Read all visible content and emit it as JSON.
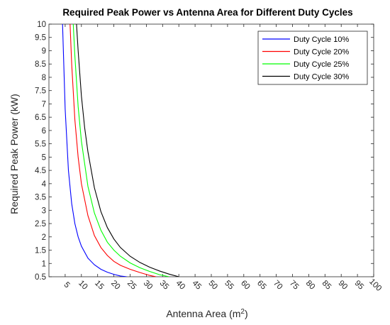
{
  "chart_data": {
    "type": "line",
    "title": "Required Peak Power vs Antenna Area for Different Duty Cycles",
    "xlabel": "Antenna Area (m",
    "xlabel_superscript": "2",
    "xlabel_suffix": ")",
    "ylabel": "Required Peak Power (kW)",
    "xlim": [
      0,
      100
    ],
    "ylim": [
      0.5,
      10
    ],
    "xticks": [
      5,
      10,
      15,
      20,
      25,
      30,
      35,
      40,
      45,
      50,
      55,
      60,
      65,
      70,
      75,
      80,
      85,
      90,
      95,
      100
    ],
    "yticks": [
      0.5,
      1,
      1.5,
      2,
      2.5,
      3,
      3.5,
      4,
      4.5,
      5,
      5.5,
      6,
      6.5,
      7,
      7.5,
      8,
      8.5,
      9,
      9.5,
      10
    ],
    "grid": false,
    "legend_position": "top-right",
    "series": [
      {
        "name": "Duty Cycle 10%",
        "color": "#0000ff",
        "x": [
          4.2,
          5,
          6,
          7,
          8,
          9,
          10,
          12,
          14,
          16,
          18,
          20,
          22,
          24
        ],
        "y": [
          10,
          6.8,
          4.5,
          3.25,
          2.5,
          2.0,
          1.65,
          1.2,
          0.95,
          0.78,
          0.67,
          0.59,
          0.53,
          0.5
        ]
      },
      {
        "name": "Duty Cycle 20%",
        "color": "#ff0000",
        "x": [
          6.5,
          7,
          8,
          9,
          10,
          12,
          14,
          16,
          18,
          20,
          22,
          25,
          28,
          31,
          33
        ],
        "y": [
          10,
          8.5,
          6.4,
          5.0,
          4.0,
          2.8,
          2.05,
          1.6,
          1.3,
          1.08,
          0.93,
          0.78,
          0.66,
          0.55,
          0.5
        ]
      },
      {
        "name": "Duty Cycle 25%",
        "color": "#00ff00",
        "x": [
          7.5,
          8,
          9,
          10,
          12,
          14,
          16,
          18,
          20,
          22,
          25,
          28,
          31,
          34,
          37
        ],
        "y": [
          10,
          8.8,
          6.9,
          5.6,
          3.9,
          2.9,
          2.25,
          1.8,
          1.5,
          1.27,
          1.02,
          0.84,
          0.7,
          0.58,
          0.5
        ]
      },
      {
        "name": "Duty Cycle 30%",
        "color": "#000000",
        "x": [
          8.5,
          9,
          10,
          11,
          12,
          14,
          16,
          18,
          20,
          22,
          25,
          28,
          31,
          34,
          37,
          40
        ],
        "y": [
          10,
          9.0,
          7.3,
          6.1,
          5.2,
          3.85,
          2.95,
          2.35,
          1.92,
          1.6,
          1.27,
          1.04,
          0.86,
          0.72,
          0.6,
          0.5
        ]
      }
    ]
  }
}
